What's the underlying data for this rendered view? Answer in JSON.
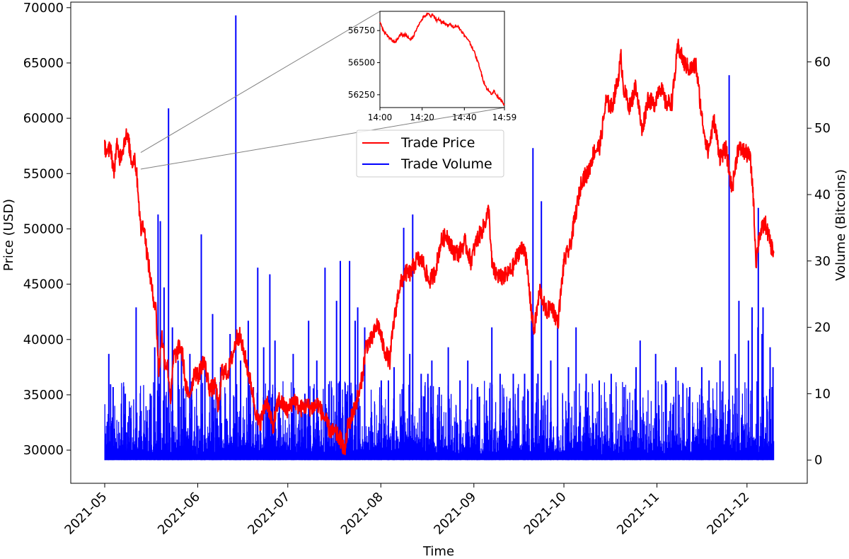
{
  "chart_data": {
    "type": "line",
    "title": "",
    "xlabel": "Time",
    "ylabel_left": "Price (USD)",
    "ylabel_right": "Volume (Bitcoins)",
    "x_range": [
      "2021-05-01",
      "2021-12-10"
    ],
    "x_ticks": [
      "2021-05",
      "2021-06",
      "2021-07",
      "2021-08",
      "2021-09",
      "2021-10",
      "2021-11",
      "2021-12"
    ],
    "y_left_range": [
      27000,
      70500
    ],
    "y_left_ticks": [
      "30000",
      "35000",
      "40000",
      "45000",
      "50000",
      "55000",
      "60000",
      "65000",
      "70000"
    ],
    "y_right_range": [
      -3.5,
      69
    ],
    "y_right_ticks": [
      "0",
      "10",
      "20",
      "30",
      "40",
      "50",
      "60"
    ],
    "legend_placement": "upper-center",
    "series": [
      {
        "name": "Trade Price",
        "color": "#ff0000",
        "axis": "left",
        "points": [
          [
            "2021-05-01",
            57500
          ],
          [
            "2021-05-02",
            56800
          ],
          [
            "2021-05-03",
            57500
          ],
          [
            "2021-05-04",
            55000
          ],
          [
            "2021-05-05",
            57500
          ],
          [
            "2021-05-06",
            56500
          ],
          [
            "2021-05-07",
            57200
          ],
          [
            "2021-05-08",
            58500
          ],
          [
            "2021-05-09",
            57800
          ],
          [
            "2021-05-10",
            56000
          ],
          [
            "2021-05-11",
            56500
          ],
          [
            "2021-05-12",
            54000
          ],
          [
            "2021-05-13",
            49800
          ],
          [
            "2021-05-14",
            50500
          ],
          [
            "2021-05-15",
            48000
          ],
          [
            "2021-05-16",
            46000
          ],
          [
            "2021-05-17",
            44000
          ],
          [
            "2021-05-18",
            43000
          ],
          [
            "2021-05-19",
            37000
          ],
          [
            "2021-05-20",
            40500
          ],
          [
            "2021-05-21",
            38000
          ],
          [
            "2021-05-22",
            37500
          ],
          [
            "2021-05-23",
            34500
          ],
          [
            "2021-05-24",
            38500
          ],
          [
            "2021-05-25",
            38700
          ],
          [
            "2021-05-26",
            39500
          ],
          [
            "2021-05-27",
            38500
          ],
          [
            "2021-05-28",
            35800
          ],
          [
            "2021-05-29",
            34800
          ],
          [
            "2021-05-30",
            35800
          ],
          [
            "2021-05-31",
            37300
          ],
          [
            "2021-06-01",
            36600
          ],
          [
            "2021-06-03",
            38200
          ],
          [
            "2021-06-05",
            35500
          ],
          [
            "2021-06-07",
            35800
          ],
          [
            "2021-06-08",
            33500
          ],
          [
            "2021-06-09",
            37200
          ],
          [
            "2021-06-11",
            37000
          ],
          [
            "2021-06-13",
            39000
          ],
          [
            "2021-06-14",
            40200
          ],
          [
            "2021-06-15",
            40300
          ],
          [
            "2021-06-17",
            38100
          ],
          [
            "2021-06-19",
            35600
          ],
          [
            "2021-06-21",
            32500
          ],
          [
            "2021-06-22",
            32600
          ],
          [
            "2021-06-24",
            34600
          ],
          [
            "2021-06-26",
            32000
          ],
          [
            "2021-06-28",
            34600
          ],
          [
            "2021-07-01",
            33500
          ],
          [
            "2021-07-03",
            34700
          ],
          [
            "2021-07-05",
            33700
          ],
          [
            "2021-07-07",
            34000
          ],
          [
            "2021-07-09",
            33800
          ],
          [
            "2021-07-11",
            34200
          ],
          [
            "2021-07-13",
            33000
          ],
          [
            "2021-07-15",
            31800
          ],
          [
            "2021-07-17",
            31500
          ],
          [
            "2021-07-19",
            30800
          ],
          [
            "2021-07-20",
            29800
          ],
          [
            "2021-07-21",
            32100
          ],
          [
            "2021-07-23",
            33600
          ],
          [
            "2021-07-25",
            35400
          ],
          [
            "2021-07-26",
            37000
          ],
          [
            "2021-07-27",
            39400
          ],
          [
            "2021-07-29",
            40000
          ],
          [
            "2021-07-31",
            41500
          ],
          [
            "2021-08-02",
            39200
          ],
          [
            "2021-08-04",
            38000
          ],
          [
            "2021-08-05",
            40900
          ],
          [
            "2021-08-07",
            44500
          ],
          [
            "2021-08-09",
            46000
          ],
          [
            "2021-08-11",
            46000
          ],
          [
            "2021-08-13",
            47300
          ],
          [
            "2021-08-15",
            47000
          ],
          [
            "2021-08-17",
            45200
          ],
          [
            "2021-08-19",
            46000
          ],
          [
            "2021-08-21",
            48800
          ],
          [
            "2021-08-23",
            49500
          ],
          [
            "2021-08-25",
            48000
          ],
          [
            "2021-08-27",
            47800
          ],
          [
            "2021-08-29",
            48800
          ],
          [
            "2021-08-31",
            47100
          ],
          [
            "2021-09-02",
            49000
          ],
          [
            "2021-09-04",
            50000
          ],
          [
            "2021-09-06",
            51700
          ],
          [
            "2021-09-07",
            46800
          ],
          [
            "2021-09-08",
            46000
          ],
          [
            "2021-09-10",
            45600
          ],
          [
            "2021-09-12",
            45800
          ],
          [
            "2021-09-14",
            46500
          ],
          [
            "2021-09-16",
            48000
          ],
          [
            "2021-09-18",
            48300
          ],
          [
            "2021-09-20",
            43000
          ],
          [
            "2021-09-21",
            40700
          ],
          [
            "2021-09-23",
            44500
          ],
          [
            "2021-09-25",
            42500
          ],
          [
            "2021-09-27",
            43000
          ],
          [
            "2021-09-29",
            41500
          ],
          [
            "2021-10-01",
            47000
          ],
          [
            "2021-10-03",
            48300
          ],
          [
            "2021-10-05",
            51500
          ],
          [
            "2021-10-07",
            54500
          ],
          [
            "2021-10-09",
            55000
          ],
          [
            "2021-10-11",
            57000
          ],
          [
            "2021-10-13",
            57500
          ],
          [
            "2021-10-15",
            61500
          ],
          [
            "2021-10-17",
            61000
          ],
          [
            "2021-10-19",
            63500
          ],
          [
            "2021-10-20",
            65500
          ],
          [
            "2021-10-21",
            62500
          ],
          [
            "2021-10-23",
            61000
          ],
          [
            "2021-10-25",
            63000
          ],
          [
            "2021-10-27",
            58800
          ],
          [
            "2021-10-29",
            61800
          ],
          [
            "2021-10-31",
            61200
          ],
          [
            "2021-11-02",
            63000
          ],
          [
            "2021-11-04",
            61300
          ],
          [
            "2021-11-06",
            61500
          ],
          [
            "2021-11-08",
            66500
          ],
          [
            "2021-11-10",
            65000
          ],
          [
            "2021-11-12",
            64400
          ],
          [
            "2021-11-14",
            64800
          ],
          [
            "2021-11-16",
            60000
          ],
          [
            "2021-11-18",
            56900
          ],
          [
            "2021-11-20",
            59800
          ],
          [
            "2021-11-22",
            56500
          ],
          [
            "2021-11-24",
            57200
          ],
          [
            "2021-11-26",
            53500
          ],
          [
            "2021-11-28",
            57300
          ],
          [
            "2021-11-30",
            57000
          ],
          [
            "2021-12-02",
            56500
          ],
          [
            "2021-12-03",
            53500
          ],
          [
            "2021-12-04",
            47000
          ],
          [
            "2021-12-05",
            49300
          ],
          [
            "2021-12-07",
            50600
          ],
          [
            "2021-12-09",
            48500
          ],
          [
            "2021-12-10",
            47800
          ]
        ]
      },
      {
        "name": "Trade Volume",
        "color": "#0000ff",
        "axis": "right",
        "base_level": [
          0,
          3
        ],
        "spikes": [
          [
            "2021-05-01",
            4
          ],
          [
            "2021-05-02",
            16
          ],
          [
            "2021-05-04",
            11
          ],
          [
            "2021-05-08",
            10
          ],
          [
            "2021-05-12",
            23
          ],
          [
            "2021-05-16",
            10
          ],
          [
            "2021-05-18",
            17
          ],
          [
            "2021-05-19",
            37
          ],
          [
            "2021-05-20",
            36
          ],
          [
            "2021-05-21",
            26
          ],
          [
            "2021-05-22",
            53
          ],
          [
            "2021-05-23",
            20
          ],
          [
            "2021-05-25",
            15
          ],
          [
            "2021-05-27",
            17
          ],
          [
            "2021-05-29",
            16
          ],
          [
            "2021-06-02",
            34
          ],
          [
            "2021-06-04",
            15
          ],
          [
            "2021-06-06",
            22
          ],
          [
            "2021-06-08",
            14
          ],
          [
            "2021-06-12",
            19
          ],
          [
            "2021-06-14",
            67
          ],
          [
            "2021-06-15",
            15
          ],
          [
            "2021-06-18",
            21
          ],
          [
            "2021-06-21",
            29
          ],
          [
            "2021-06-23",
            17
          ],
          [
            "2021-06-25",
            28
          ],
          [
            "2021-06-27",
            18
          ],
          [
            "2021-07-03",
            16
          ],
          [
            "2021-07-06",
            10
          ],
          [
            "2021-07-08",
            21
          ],
          [
            "2021-07-10",
            15
          ],
          [
            "2021-07-14",
            29
          ],
          [
            "2021-07-17",
            24
          ],
          [
            "2021-07-19",
            30
          ],
          [
            "2021-07-21",
            30
          ],
          [
            "2021-07-23",
            21
          ],
          [
            "2021-07-25",
            23
          ],
          [
            "2021-07-27",
            20
          ],
          [
            "2021-08-01",
            12
          ],
          [
            "2021-08-04",
            12
          ],
          [
            "2021-08-06",
            14
          ],
          [
            "2021-08-08",
            35
          ],
          [
            "2021-08-10",
            16
          ],
          [
            "2021-08-12",
            37
          ],
          [
            "2021-08-14",
            13
          ],
          [
            "2021-08-16",
            13
          ],
          [
            "2021-08-18",
            15
          ],
          [
            "2021-08-21",
            11
          ],
          [
            "2021-08-24",
            17
          ],
          [
            "2021-08-27",
            12
          ],
          [
            "2021-08-30",
            15
          ],
          [
            "2021-09-02",
            11
          ],
          [
            "2021-09-05",
            9
          ],
          [
            "2021-09-07",
            20
          ],
          [
            "2021-09-10",
            13
          ],
          [
            "2021-09-14",
            13
          ],
          [
            "2021-09-18",
            13
          ],
          [
            "2021-09-20",
            21
          ],
          [
            "2021-09-21",
            47
          ],
          [
            "2021-09-23",
            13
          ],
          [
            "2021-09-24",
            39
          ],
          [
            "2021-09-26",
            15
          ],
          [
            "2021-09-29",
            20
          ],
          [
            "2021-10-02",
            14
          ],
          [
            "2021-10-05",
            20
          ],
          [
            "2021-10-09",
            13
          ],
          [
            "2021-10-13",
            12
          ],
          [
            "2021-10-17",
            13
          ],
          [
            "2021-10-21",
            11
          ],
          [
            "2021-10-25",
            14
          ],
          [
            "2021-10-27",
            18
          ],
          [
            "2021-10-31",
            16
          ],
          [
            "2021-11-04",
            12
          ],
          [
            "2021-11-08",
            14
          ],
          [
            "2021-11-12",
            11
          ],
          [
            "2021-11-16",
            14
          ],
          [
            "2021-11-19",
            12
          ],
          [
            "2021-11-22",
            15
          ],
          [
            "2021-11-25",
            58
          ],
          [
            "2021-11-27",
            16
          ],
          [
            "2021-11-29",
            24
          ],
          [
            "2021-12-01",
            18
          ],
          [
            "2021-12-03",
            23
          ],
          [
            "2021-12-04",
            20
          ],
          [
            "2021-12-05",
            38
          ],
          [
            "2021-12-06",
            19
          ],
          [
            "2021-12-07",
            23
          ],
          [
            "2021-12-08",
            17
          ],
          [
            "2021-12-09",
            14
          ],
          [
            "2021-12-10",
            11
          ]
        ]
      }
    ],
    "inset": {
      "date": "2021-05-13",
      "x_ticks": [
        "14:00",
        "14:20",
        "14:40",
        "14:59"
      ],
      "x_range_minutes": [
        0,
        59
      ],
      "y_range": [
        56150,
        56900
      ],
      "y_ticks": [
        "56250",
        "56500",
        "56750"
      ],
      "series_color": "#ff0000",
      "points": [
        [
          0,
          56820
        ],
        [
          1,
          56770
        ],
        [
          2,
          56740
        ],
        [
          3,
          56720
        ],
        [
          4,
          56700
        ],
        [
          5,
          56690
        ],
        [
          6,
          56670
        ],
        [
          7,
          56660
        ],
        [
          8,
          56680
        ],
        [
          9,
          56700
        ],
        [
          10,
          56720
        ],
        [
          11,
          56710
        ],
        [
          12,
          56720
        ],
        [
          13,
          56700
        ],
        [
          14,
          56690
        ],
        [
          15,
          56680
        ],
        [
          16,
          56710
        ],
        [
          17,
          56750
        ],
        [
          18,
          56790
        ],
        [
          19,
          56810
        ],
        [
          20,
          56840
        ],
        [
          21,
          56860
        ],
        [
          22,
          56870
        ],
        [
          23,
          56880
        ],
        [
          24,
          56860
        ],
        [
          25,
          56870
        ],
        [
          26,
          56850
        ],
        [
          27,
          56830
        ],
        [
          28,
          56840
        ],
        [
          29,
          56820
        ],
        [
          30,
          56810
        ],
        [
          31,
          56800
        ],
        [
          32,
          56790
        ],
        [
          33,
          56800
        ],
        [
          34,
          56790
        ],
        [
          35,
          56780
        ],
        [
          36,
          56790
        ],
        [
          37,
          56780
        ],
        [
          38,
          56760
        ],
        [
          39,
          56740
        ],
        [
          40,
          56710
        ],
        [
          41,
          56690
        ],
        [
          42,
          56680
        ],
        [
          43,
          56640
        ],
        [
          44,
          56610
        ],
        [
          45,
          56570
        ],
        [
          46,
          56520
        ],
        [
          47,
          56480
        ],
        [
          48,
          56420
        ],
        [
          49,
          56360
        ],
        [
          50,
          56320
        ],
        [
          51,
          56290
        ],
        [
          52,
          56270
        ],
        [
          53,
          56260
        ],
        [
          54,
          56280
        ],
        [
          55,
          56250
        ],
        [
          56,
          56230
        ],
        [
          57,
          56220
        ],
        [
          58,
          56200
        ],
        [
          59,
          56170
        ]
      ]
    }
  }
}
